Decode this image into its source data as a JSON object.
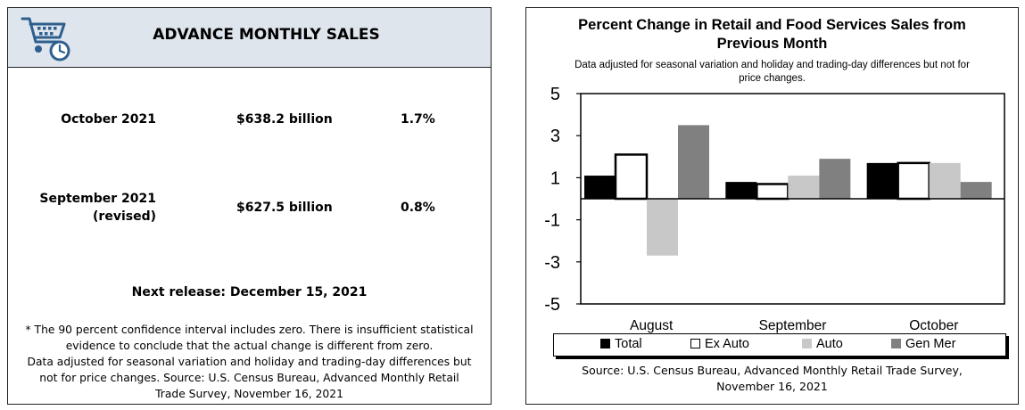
{
  "left": {
    "title": "ADVANCE MONTHLY SALES",
    "rows": [
      {
        "period_line1": "October 2021",
        "period_line2": "",
        "value": "$638.2 billion",
        "change": "1.7%"
      },
      {
        "period_line1": "September 2021",
        "period_line2": "(revised)",
        "value": "$627.5 billion",
        "change": "0.8%"
      }
    ],
    "next_release": "Next release: December 15, 2021",
    "footnote_lines": [
      "* The 90 percent confidence interval includes zero. There is insufficient statistical",
      "evidence to conclude that the actual change is different from zero.",
      "Data adjusted for seasonal variation and holiday and trading-day differences but",
      "not for price changes. Source: U.S. Census Bureau, Advanced Monthly Retail",
      "Trade Survey, November 16, 2021"
    ],
    "header_color": "#dfe5ec",
    "logo_color": "#2e5f8f",
    "logo_icon": "shopping-cart-clock-icon"
  },
  "chart_data": {
    "type": "bar",
    "title_lines": [
      "Percent Change in Retail and Food Services Sales from",
      "Previous Month"
    ],
    "subtitle_lines": [
      "Data adjusted for seasonal variation and holiday and trading-day differences but not for",
      "price changes."
    ],
    "categories": [
      "August",
      "September",
      "October"
    ],
    "series": [
      {
        "name": "Total",
        "values": [
          1.1,
          0.8,
          1.7
        ],
        "color": "#000000"
      },
      {
        "name": "Ex Auto",
        "values": [
          2.1,
          0.7,
          1.7
        ],
        "color": "#ffffff"
      },
      {
        "name": "Auto",
        "values": [
          -2.7,
          1.1,
          1.7
        ],
        "color": "#c8c8c8"
      },
      {
        "name": "Gen Mer",
        "values": [
          3.5,
          1.9,
          0.8
        ],
        "color": "#808080"
      }
    ],
    "ylim": [
      -5,
      5
    ],
    "yticks": [
      5,
      3,
      1,
      -1,
      -3,
      -5
    ],
    "grid": false,
    "legend_position": "bottom",
    "source_lines": [
      "Source: U.S. Census Bureau, Advanced Monthly Retail Trade Survey,",
      "November 16, 2021"
    ]
  }
}
